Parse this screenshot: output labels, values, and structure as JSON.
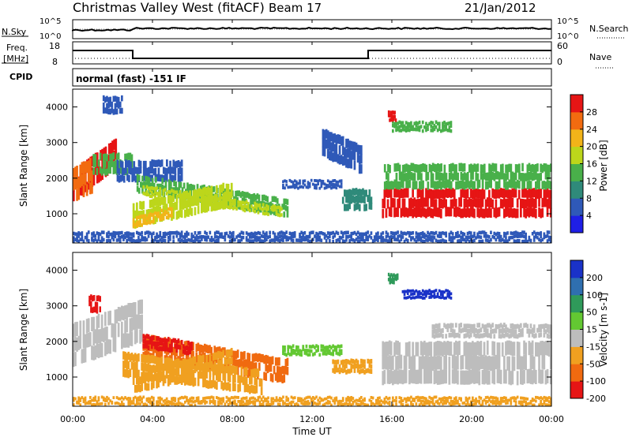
{
  "header": {
    "station": "Christmas Valley West (fitACF)",
    "beam": "Beam 17",
    "date": "21/Jan/2012"
  },
  "panels": {
    "sky_label": "N.Sky",
    "sky_ticks": [
      "10^5",
      "10^0"
    ],
    "search_label": "N.Search",
    "search_ticks": [
      "10^5",
      "10^0"
    ],
    "freq_label_1": "Freq.",
    "freq_label_2": "[MHz]",
    "freq_ticks": [
      "18",
      "8"
    ],
    "nave_label": "Nave",
    "nave_ticks": [
      "60",
      "0"
    ],
    "cpid_label": "CPID",
    "cpid_text": "normal (fast) -151 IF"
  },
  "chart_data": [
    {
      "type": "heatmap",
      "title": "Power",
      "xlabel": "Time UT",
      "ylabel": "Slant Range [km]",
      "colorbar_label": "Power [dB]",
      "colorbar_ticks": [
        "28",
        "24",
        "20",
        "16",
        "12",
        "8",
        "4"
      ],
      "colorbar_colors": [
        "#1f1fe6",
        "#2f59b8",
        "#2f8a7a",
        "#49b04a",
        "#bcd61b",
        "#f2b419",
        "#f26b10",
        "#e61515"
      ],
      "x_ticks": [
        "00:00",
        "04:00",
        "08:00",
        "12:00",
        "16:00",
        "20:00",
        "00:00"
      ],
      "y_ticks": [
        "4000",
        "3000",
        "2000",
        "1000"
      ],
      "xlim_hours": [
        0,
        24
      ],
      "ylim_km": [
        180,
        4500
      ]
    },
    {
      "type": "heatmap",
      "title": "Velocity",
      "xlabel": "Time UT",
      "ylabel": "Slant Range [km]",
      "colorbar_label": "Velocity [m s-1]",
      "colorbar_ticks": [
        "200",
        "100",
        "50",
        "15",
        "-15",
        "-50",
        "-100",
        "-200"
      ],
      "colorbar_colors": [
        "#1a32c8",
        "#2f6fb0",
        "#2f9a5a",
        "#63c832",
        "#bdbdbd",
        "#f0a020",
        "#f06a10",
        "#e61515"
      ],
      "x_ticks": [
        "00:00",
        "04:00",
        "08:00",
        "12:00",
        "16:00",
        "20:00",
        "00:00"
      ],
      "y_ticks": [
        "4000",
        "3000",
        "2000",
        "1000"
      ],
      "xlim_hours": [
        0,
        24
      ],
      "ylim_km": [
        180,
        4500
      ]
    }
  ],
  "power_features": [
    {
      "t0": 0.0,
      "t1": 2.2,
      "r0": 1350,
      "r1": 2250,
      "color": "#e61515",
      "slope": 900
    },
    {
      "t0": 0.0,
      "t1": 1.0,
      "r0": 1300,
      "r1": 2300,
      "color": "#f26b10",
      "slope": 300
    },
    {
      "t0": 1.0,
      "t1": 3.0,
      "r0": 2100,
      "r1": 2700,
      "color": "#49b04a",
      "slope": 0
    },
    {
      "t0": 2.2,
      "t1": 5.5,
      "r0": 1900,
      "r1": 2500,
      "color": "#2f59b8",
      "slope": 0
    },
    {
      "t0": 3.2,
      "t1": 10.8,
      "r0": 1600,
      "r1": 2100,
      "color": "#49b04a",
      "slope": -700
    },
    {
      "t0": 3.5,
      "t1": 10.5,
      "r0": 1500,
      "r1": 1800,
      "color": "#bcd61b",
      "slope": -600
    },
    {
      "t0": 3.0,
      "t1": 8.0,
      "r0": 600,
      "r1": 1300,
      "color": "#bcd61b",
      "slope": 600
    },
    {
      "t0": 3.0,
      "t1": 5.0,
      "r0": 600,
      "r1": 900,
      "color": "#f2b419",
      "slope": 300
    },
    {
      "t0": 10.5,
      "t1": 13.5,
      "r0": 1700,
      "r1": 1950,
      "color": "#2f59b8",
      "slope": 0
    },
    {
      "t0": 13.5,
      "t1": 15.0,
      "r0": 1100,
      "r1": 1700,
      "color": "#2f8a7a",
      "slope": 0
    },
    {
      "t0": 12.5,
      "t1": 14.5,
      "r0": 2600,
      "r1": 3400,
      "color": "#2f59b8",
      "slope": -500
    },
    {
      "t0": 15.5,
      "t1": 24.0,
      "r0": 900,
      "r1": 1700,
      "color": "#e61515",
      "slope": 0
    },
    {
      "t0": 15.6,
      "t1": 24.0,
      "r0": 1700,
      "r1": 2400,
      "color": "#49b04a",
      "slope": 0
    },
    {
      "t0": 16.0,
      "t1": 19.0,
      "r0": 3300,
      "r1": 3600,
      "color": "#49b04a",
      "slope": 0
    },
    {
      "t0": 15.8,
      "t1": 16.2,
      "r0": 3600,
      "r1": 3900,
      "color": "#e61515",
      "slope": 0
    },
    {
      "t0": 0.0,
      "t1": 24.0,
      "r0": 200,
      "r1": 500,
      "color": "#2f59b8",
      "slope": 0
    },
    {
      "t0": 1.5,
      "t1": 2.5,
      "r0": 3800,
      "r1": 4300,
      "color": "#2f59b8",
      "slope": 0
    }
  ],
  "velocity_features": [
    {
      "t0": 0.0,
      "t1": 3.5,
      "r0": 1300,
      "r1": 2500,
      "color": "#bdbdbd",
      "slope": 700
    },
    {
      "t0": 0.8,
      "t1": 1.4,
      "r0": 2800,
      "r1": 3300,
      "color": "#e61515",
      "slope": 0
    },
    {
      "t0": 3.5,
      "t1": 10.8,
      "r0": 1500,
      "r1": 2200,
      "color": "#f06a10",
      "slope": -700
    },
    {
      "t0": 3.5,
      "t1": 6.0,
      "r0": 1800,
      "r1": 2200,
      "color": "#e61515",
      "slope": -200
    },
    {
      "t0": 2.5,
      "t1": 9.5,
      "r0": 1000,
      "r1": 1700,
      "color": "#f0a020",
      "slope": -500
    },
    {
      "t0": 3.0,
      "t1": 8.0,
      "r0": 550,
      "r1": 1200,
      "color": "#f0a020",
      "slope": 600
    },
    {
      "t0": 10.5,
      "t1": 13.5,
      "r0": 1600,
      "r1": 1900,
      "color": "#63c832",
      "slope": 0
    },
    {
      "t0": 13.0,
      "t1": 15.0,
      "r0": 1100,
      "r1": 1500,
      "color": "#f0a020",
      "slope": 0
    },
    {
      "t0": 15.5,
      "t1": 24.0,
      "r0": 800,
      "r1": 2000,
      "color": "#bdbdbd",
      "slope": 0
    },
    {
      "t0": 16.5,
      "t1": 19.0,
      "r0": 3200,
      "r1": 3450,
      "color": "#1a32c8",
      "slope": 0
    },
    {
      "t0": 15.8,
      "t1": 16.3,
      "r0": 3600,
      "r1": 3900,
      "color": "#2f9a5a",
      "slope": 0
    },
    {
      "t0": 0.0,
      "t1": 24.0,
      "r0": 200,
      "r1": 450,
      "color": "#f0a020",
      "slope": 0
    },
    {
      "t0": 18.0,
      "t1": 24.0,
      "r0": 2100,
      "r1": 2500,
      "color": "#bdbdbd",
      "slope": 0
    }
  ]
}
